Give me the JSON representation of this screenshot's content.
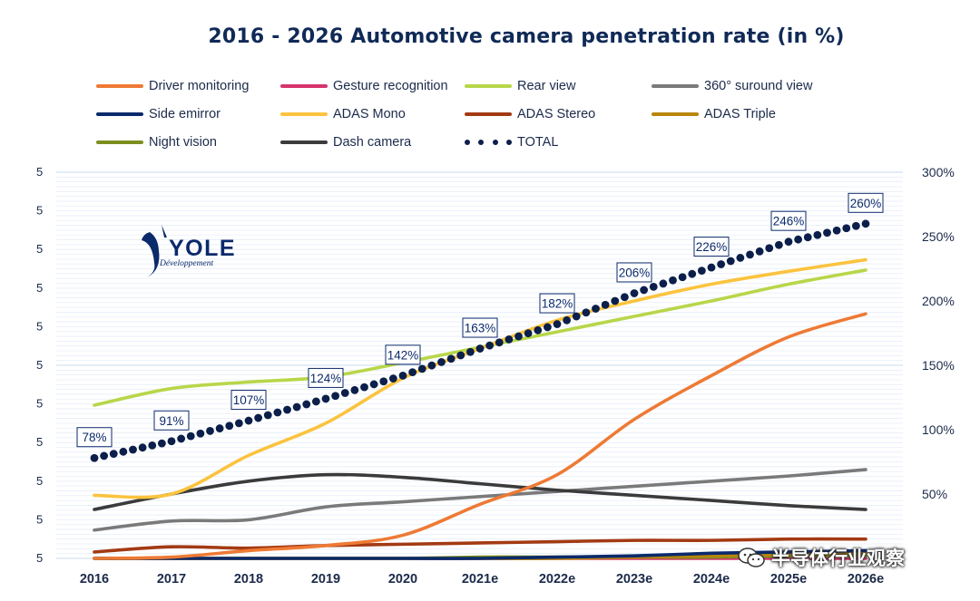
{
  "page_title": "2016 - 2026 Automotive camera penetration rate (in %)",
  "watermark": "半导体行业观察",
  "logo": {
    "name": "YOLE",
    "sub": "Développement"
  },
  "legend": [
    {
      "label": "Driver monitoring",
      "color": "#ee7a35",
      "style": "line"
    },
    {
      "label": "Gesture recognition",
      "color": "#d6336c",
      "style": "line"
    },
    {
      "label": "Rear view",
      "color": "#b8d64a",
      "style": "line"
    },
    {
      "label": "360° suround view",
      "color": "#7a7a7a",
      "style": "line"
    },
    {
      "label": "Side emirror",
      "color": "#0b2a6b",
      "style": "line"
    },
    {
      "label": "ADAS Mono",
      "color": "#fbc33e",
      "style": "line"
    },
    {
      "label": "ADAS Stereo",
      "color": "#a33a13",
      "style": "line"
    },
    {
      "label": "ADAS Triple",
      "color": "#b8860b",
      "style": "line"
    },
    {
      "label": "Night vision",
      "color": "#7b8f1e",
      "style": "line"
    },
    {
      "label": "Dash camera",
      "color": "#3b3b3b",
      "style": "line"
    },
    {
      "label": "TOTAL",
      "color": "#0b1f4a",
      "style": "dots"
    }
  ],
  "chart_data": {
    "type": "line",
    "title": "2016 - 2026 Automotive camera penetration rate (in %)",
    "x": [
      "2016",
      "2017",
      "2018",
      "2019",
      "2020",
      "2021e",
      "2022e",
      "2023e",
      "2024e",
      "2025e",
      "2026e"
    ],
    "y_right_ticks": [
      "50%",
      "100%",
      "150%",
      "200%",
      "250%",
      "300%"
    ],
    "y_left_ticks": [
      "5",
      "5",
      "5",
      "5",
      "5",
      "5",
      "5",
      "5",
      "5",
      "5",
      "5"
    ],
    "ylim": [
      0,
      300
    ],
    "grid": true,
    "legend_position": "top",
    "series": [
      {
        "name": "Driver monitoring",
        "color": "#ee7a35",
        "values": [
          0,
          1,
          6,
          10,
          18,
          42,
          65,
          108,
          142,
          172,
          190
        ]
      },
      {
        "name": "Gesture recognition",
        "color": "#d6336c",
        "values": [
          0,
          0,
          0,
          0,
          0,
          0,
          0,
          0,
          0,
          0,
          0
        ]
      },
      {
        "name": "Rear view",
        "color": "#b8d64a",
        "values": [
          119,
          132,
          137,
          141,
          152,
          164,
          176,
          188,
          200,
          213,
          224
        ]
      },
      {
        "name": "360° suround view",
        "color": "#7a7a7a",
        "values": [
          22,
          29,
          30,
          40,
          44,
          48,
          52,
          56,
          60,
          64,
          69
        ]
      },
      {
        "name": "Side emirror",
        "color": "#0b2a6b",
        "values": [
          0,
          0,
          0,
          0,
          0,
          0,
          1,
          2,
          4,
          5,
          6
        ]
      },
      {
        "name": "ADAS Mono",
        "color": "#fbc33e",
        "values": [
          49,
          50,
          80,
          105,
          140,
          163,
          185,
          200,
          213,
          223,
          232
        ]
      },
      {
        "name": "ADAS Stereo",
        "color": "#a33a13",
        "values": [
          5,
          9,
          8,
          10,
          11,
          12,
          13,
          14,
          14,
          15,
          15
        ]
      },
      {
        "name": "ADAS Triple",
        "color": "#b8860b",
        "values": [
          0,
          0,
          0,
          0,
          0,
          0,
          0,
          1,
          2,
          3,
          4
        ]
      },
      {
        "name": "Night vision",
        "color": "#7b8f1e",
        "values": [
          0,
          0,
          0,
          0,
          0,
          1,
          1,
          1,
          1,
          2,
          2
        ]
      },
      {
        "name": "Dash camera",
        "color": "#3b3b3b",
        "values": [
          38,
          50,
          60,
          65,
          63,
          58,
          53,
          49,
          45,
          41,
          38
        ]
      },
      {
        "name": "TOTAL",
        "color": "#0b1f4a",
        "style": "dots",
        "values": [
          78,
          91,
          107,
          124,
          142,
          163,
          182,
          206,
          226,
          246,
          260
        ]
      }
    ],
    "data_labels": [
      "78%",
      "91%",
      "107%",
      "124%",
      "142%",
      "163%",
      "182%",
      "206%",
      "226%",
      "246%",
      "260%"
    ]
  }
}
